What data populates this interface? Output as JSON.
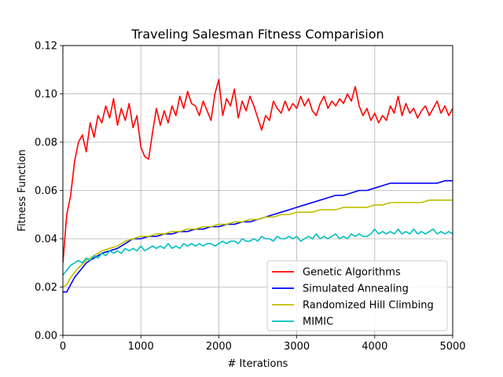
{
  "chart_data": {
    "type": "line",
    "title": "Traveling Salesman Fitness Comparision",
    "xlabel": "# Iterations",
    "ylabel": "Fitness Function",
    "xlim": [
      0,
      5000
    ],
    "ylim": [
      0,
      0.12
    ],
    "x_ticks": [
      "0",
      "1000",
      "2000",
      "3000",
      "4000",
      "5000"
    ],
    "y_ticks": [
      "0.00",
      "0.02",
      "0.04",
      "0.06",
      "0.08",
      "0.10",
      "0.12"
    ],
    "grid": true,
    "legend_position": "lower-right",
    "series": [
      {
        "name": "Genetic Algorithms",
        "color": "#ff0000",
        "points": [
          [
            0,
            0.03
          ],
          [
            50,
            0.05
          ],
          [
            100,
            0.058
          ],
          [
            150,
            0.072
          ],
          [
            200,
            0.08
          ],
          [
            250,
            0.083
          ],
          [
            300,
            0.076
          ],
          [
            350,
            0.088
          ],
          [
            400,
            0.082
          ],
          [
            450,
            0.091
          ],
          [
            500,
            0.088
          ],
          [
            550,
            0.095
          ],
          [
            600,
            0.09
          ],
          [
            650,
            0.098
          ],
          [
            700,
            0.087
          ],
          [
            750,
            0.094
          ],
          [
            800,
            0.089
          ],
          [
            850,
            0.096
          ],
          [
            900,
            0.086
          ],
          [
            950,
            0.091
          ],
          [
            1000,
            0.078
          ],
          [
            1050,
            0.074
          ],
          [
            1100,
            0.073
          ],
          [
            1150,
            0.084
          ],
          [
            1200,
            0.094
          ],
          [
            1250,
            0.087
          ],
          [
            1300,
            0.093
          ],
          [
            1350,
            0.088
          ],
          [
            1400,
            0.095
          ],
          [
            1450,
            0.091
          ],
          [
            1500,
            0.099
          ],
          [
            1550,
            0.094
          ],
          [
            1600,
            0.101
          ],
          [
            1650,
            0.096
          ],
          [
            1700,
            0.095
          ],
          [
            1750,
            0.091
          ],
          [
            1800,
            0.097
          ],
          [
            1850,
            0.093
          ],
          [
            1900,
            0.089
          ],
          [
            1950,
            0.1
          ],
          [
            2000,
            0.106
          ],
          [
            2050,
            0.091
          ],
          [
            2100,
            0.098
          ],
          [
            2150,
            0.095
          ],
          [
            2200,
            0.102
          ],
          [
            2250,
            0.09
          ],
          [
            2300,
            0.097
          ],
          [
            2350,
            0.093
          ],
          [
            2400,
            0.099
          ],
          [
            2450,
            0.095
          ],
          [
            2500,
            0.09
          ],
          [
            2550,
            0.085
          ],
          [
            2600,
            0.091
          ],
          [
            2650,
            0.089
          ],
          [
            2700,
            0.097
          ],
          [
            2750,
            0.094
          ],
          [
            2800,
            0.092
          ],
          [
            2850,
            0.097
          ],
          [
            2900,
            0.093
          ],
          [
            2950,
            0.096
          ],
          [
            3000,
            0.094
          ],
          [
            3050,
            0.099
          ],
          [
            3100,
            0.095
          ],
          [
            3150,
            0.098
          ],
          [
            3200,
            0.093
          ],
          [
            3250,
            0.091
          ],
          [
            3300,
            0.096
          ],
          [
            3350,
            0.099
          ],
          [
            3400,
            0.094
          ],
          [
            3450,
            0.097
          ],
          [
            3500,
            0.095
          ],
          [
            3550,
            0.098
          ],
          [
            3600,
            0.096
          ],
          [
            3650,
            0.1
          ],
          [
            3700,
            0.097
          ],
          [
            3750,
            0.103
          ],
          [
            3800,
            0.095
          ],
          [
            3850,
            0.091
          ],
          [
            3900,
            0.094
          ],
          [
            3950,
            0.089
          ],
          [
            4000,
            0.092
          ],
          [
            4050,
            0.088
          ],
          [
            4100,
            0.091
          ],
          [
            4150,
            0.089
          ],
          [
            4200,
            0.095
          ],
          [
            4250,
            0.092
          ],
          [
            4300,
            0.099
          ],
          [
            4350,
            0.091
          ],
          [
            4400,
            0.096
          ],
          [
            4450,
            0.092
          ],
          [
            4500,
            0.094
          ],
          [
            4550,
            0.09
          ],
          [
            4600,
            0.093
          ],
          [
            4650,
            0.095
          ],
          [
            4700,
            0.091
          ],
          [
            4750,
            0.094
          ],
          [
            4800,
            0.097
          ],
          [
            4850,
            0.092
          ],
          [
            4900,
            0.095
          ],
          [
            4950,
            0.091
          ],
          [
            5000,
            0.094
          ]
        ]
      },
      {
        "name": "Simulated Annealing",
        "color": "#0000ff",
        "points": [
          [
            0,
            0.018
          ],
          [
            50,
            0.018
          ],
          [
            100,
            0.021
          ],
          [
            150,
            0.024
          ],
          [
            200,
            0.026
          ],
          [
            300,
            0.03
          ],
          [
            400,
            0.032
          ],
          [
            500,
            0.034
          ],
          [
            600,
            0.035
          ],
          [
            700,
            0.036
          ],
          [
            800,
            0.038
          ],
          [
            900,
            0.04
          ],
          [
            1000,
            0.04
          ],
          [
            1100,
            0.041
          ],
          [
            1200,
            0.041
          ],
          [
            1300,
            0.042
          ],
          [
            1400,
            0.042
          ],
          [
            1500,
            0.043
          ],
          [
            1600,
            0.043
          ],
          [
            1700,
            0.044
          ],
          [
            1800,
            0.044
          ],
          [
            1900,
            0.045
          ],
          [
            2000,
            0.045
          ],
          [
            2100,
            0.046
          ],
          [
            2200,
            0.046
          ],
          [
            2300,
            0.047
          ],
          [
            2400,
            0.047
          ],
          [
            2500,
            0.048
          ],
          [
            2600,
            0.049
          ],
          [
            2700,
            0.05
          ],
          [
            2800,
            0.051
          ],
          [
            2900,
            0.052
          ],
          [
            3000,
            0.053
          ],
          [
            3100,
            0.054
          ],
          [
            3200,
            0.055
          ],
          [
            3300,
            0.056
          ],
          [
            3400,
            0.057
          ],
          [
            3500,
            0.058
          ],
          [
            3600,
            0.058
          ],
          [
            3700,
            0.059
          ],
          [
            3800,
            0.06
          ],
          [
            3900,
            0.06
          ],
          [
            4000,
            0.061
          ],
          [
            4100,
            0.062
          ],
          [
            4200,
            0.063
          ],
          [
            4300,
            0.063
          ],
          [
            4400,
            0.063
          ],
          [
            4500,
            0.063
          ],
          [
            4600,
            0.063
          ],
          [
            4700,
            0.063
          ],
          [
            4800,
            0.063
          ],
          [
            4900,
            0.064
          ],
          [
            5000,
            0.064
          ]
        ]
      },
      {
        "name": "Randomized Hill Climbing",
        "color": "#bfbf00",
        "points": [
          [
            0,
            0.02
          ],
          [
            50,
            0.021
          ],
          [
            100,
            0.024
          ],
          [
            150,
            0.026
          ],
          [
            200,
            0.028
          ],
          [
            300,
            0.031
          ],
          [
            400,
            0.033
          ],
          [
            500,
            0.035
          ],
          [
            600,
            0.036
          ],
          [
            700,
            0.037
          ],
          [
            800,
            0.039
          ],
          [
            900,
            0.04
          ],
          [
            1000,
            0.041
          ],
          [
            1100,
            0.041
          ],
          [
            1200,
            0.042
          ],
          [
            1300,
            0.042
          ],
          [
            1400,
            0.043
          ],
          [
            1500,
            0.043
          ],
          [
            1600,
            0.044
          ],
          [
            1700,
            0.044
          ],
          [
            1800,
            0.045
          ],
          [
            1900,
            0.045
          ],
          [
            2000,
            0.046
          ],
          [
            2100,
            0.046
          ],
          [
            2200,
            0.047
          ],
          [
            2300,
            0.047
          ],
          [
            2400,
            0.048
          ],
          [
            2500,
            0.048
          ],
          [
            2600,
            0.049
          ],
          [
            2700,
            0.049
          ],
          [
            2800,
            0.05
          ],
          [
            2900,
            0.05
          ],
          [
            3000,
            0.051
          ],
          [
            3100,
            0.051
          ],
          [
            3200,
            0.051
          ],
          [
            3300,
            0.052
          ],
          [
            3400,
            0.052
          ],
          [
            3500,
            0.052
          ],
          [
            3600,
            0.053
          ],
          [
            3700,
            0.053
          ],
          [
            3800,
            0.053
          ],
          [
            3900,
            0.053
          ],
          [
            4000,
            0.054
          ],
          [
            4100,
            0.054
          ],
          [
            4200,
            0.055
          ],
          [
            4300,
            0.055
          ],
          [
            4400,
            0.055
          ],
          [
            4500,
            0.055
          ],
          [
            4600,
            0.055
          ],
          [
            4700,
            0.056
          ],
          [
            4800,
            0.056
          ],
          [
            4900,
            0.056
          ],
          [
            5000,
            0.056
          ]
        ]
      },
      {
        "name": "MIMIC",
        "color": "#00bfbf",
        "points": [
          [
            0,
            0.025
          ],
          [
            50,
            0.027
          ],
          [
            100,
            0.029
          ],
          [
            150,
            0.03
          ],
          [
            200,
            0.031
          ],
          [
            250,
            0.03
          ],
          [
            300,
            0.032
          ],
          [
            350,
            0.031
          ],
          [
            400,
            0.033
          ],
          [
            450,
            0.032
          ],
          [
            500,
            0.034
          ],
          [
            550,
            0.033
          ],
          [
            600,
            0.035
          ],
          [
            650,
            0.034
          ],
          [
            700,
            0.035
          ],
          [
            750,
            0.034
          ],
          [
            800,
            0.036
          ],
          [
            850,
            0.035
          ],
          [
            900,
            0.036
          ],
          [
            950,
            0.035
          ],
          [
            1000,
            0.037
          ],
          [
            1050,
            0.035
          ],
          [
            1100,
            0.036
          ],
          [
            1150,
            0.037
          ],
          [
            1200,
            0.036
          ],
          [
            1250,
            0.037
          ],
          [
            1300,
            0.036
          ],
          [
            1350,
            0.038
          ],
          [
            1400,
            0.036
          ],
          [
            1450,
            0.037
          ],
          [
            1500,
            0.036
          ],
          [
            1550,
            0.038
          ],
          [
            1600,
            0.037
          ],
          [
            1650,
            0.038
          ],
          [
            1700,
            0.037
          ],
          [
            1750,
            0.038
          ],
          [
            1800,
            0.037
          ],
          [
            1850,
            0.038
          ],
          [
            1900,
            0.038
          ],
          [
            1950,
            0.037
          ],
          [
            2000,
            0.038
          ],
          [
            2050,
            0.039
          ],
          [
            2100,
            0.038
          ],
          [
            2150,
            0.039
          ],
          [
            2200,
            0.039
          ],
          [
            2250,
            0.038
          ],
          [
            2300,
            0.04
          ],
          [
            2350,
            0.039
          ],
          [
            2400,
            0.039
          ],
          [
            2450,
            0.04
          ],
          [
            2500,
            0.039
          ],
          [
            2550,
            0.041
          ],
          [
            2600,
            0.04
          ],
          [
            2650,
            0.04
          ],
          [
            2700,
            0.039
          ],
          [
            2750,
            0.041
          ],
          [
            2800,
            0.04
          ],
          [
            2850,
            0.04
          ],
          [
            2900,
            0.041
          ],
          [
            2950,
            0.04
          ],
          [
            3000,
            0.041
          ],
          [
            3050,
            0.039
          ],
          [
            3100,
            0.04
          ],
          [
            3150,
            0.041
          ],
          [
            3200,
            0.04
          ],
          [
            3250,
            0.042
          ],
          [
            3300,
            0.04
          ],
          [
            3350,
            0.041
          ],
          [
            3400,
            0.04
          ],
          [
            3450,
            0.041
          ],
          [
            3500,
            0.042
          ],
          [
            3550,
            0.04
          ],
          [
            3600,
            0.041
          ],
          [
            3650,
            0.04
          ],
          [
            3700,
            0.042
          ],
          [
            3750,
            0.041
          ],
          [
            3800,
            0.042
          ],
          [
            3850,
            0.041
          ],
          [
            3900,
            0.041
          ],
          [
            3950,
            0.042
          ],
          [
            4000,
            0.044
          ],
          [
            4050,
            0.042
          ],
          [
            4100,
            0.043
          ],
          [
            4150,
            0.042
          ],
          [
            4200,
            0.043
          ],
          [
            4250,
            0.042
          ],
          [
            4300,
            0.044
          ],
          [
            4350,
            0.042
          ],
          [
            4400,
            0.043
          ],
          [
            4450,
            0.042
          ],
          [
            4500,
            0.044
          ],
          [
            4550,
            0.042
          ],
          [
            4600,
            0.043
          ],
          [
            4650,
            0.042
          ],
          [
            4700,
            0.043
          ],
          [
            4750,
            0.044
          ],
          [
            4800,
            0.042
          ],
          [
            4850,
            0.043
          ],
          [
            4900,
            0.042
          ],
          [
            4950,
            0.043
          ],
          [
            5000,
            0.042
          ]
        ]
      }
    ]
  }
}
